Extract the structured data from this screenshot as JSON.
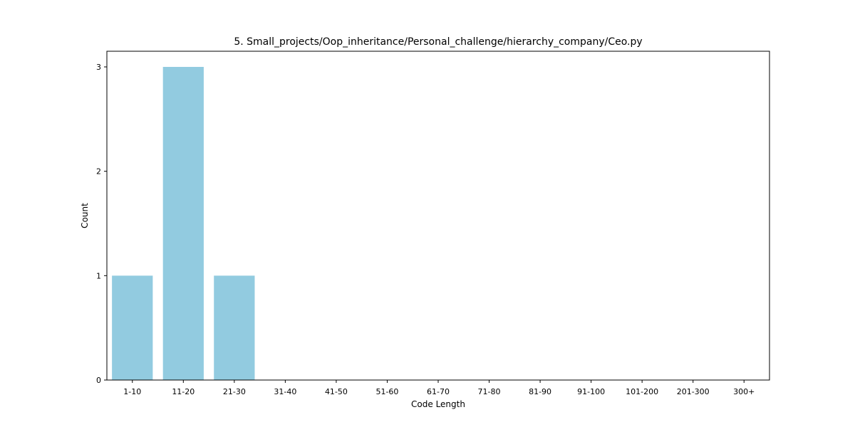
{
  "chart_data": {
    "type": "bar",
    "title": "5. Small_projects/Oop_inheritance/Personal_challenge/hierarchy_company/Ceo.py",
    "xlabel": "Code Length",
    "ylabel": "Count",
    "categories": [
      "1-10",
      "11-20",
      "21-30",
      "31-40",
      "41-50",
      "51-60",
      "61-70",
      "71-80",
      "81-90",
      "91-100",
      "101-200",
      "201-300",
      "300+"
    ],
    "values": [
      1,
      3,
      1,
      0,
      0,
      0,
      0,
      0,
      0,
      0,
      0,
      0,
      0
    ],
    "yticks": [
      0,
      1,
      2,
      3
    ],
    "ylim": [
      0,
      3.15
    ],
    "grid": false,
    "colors": {
      "bar": "#92cbe0"
    }
  }
}
